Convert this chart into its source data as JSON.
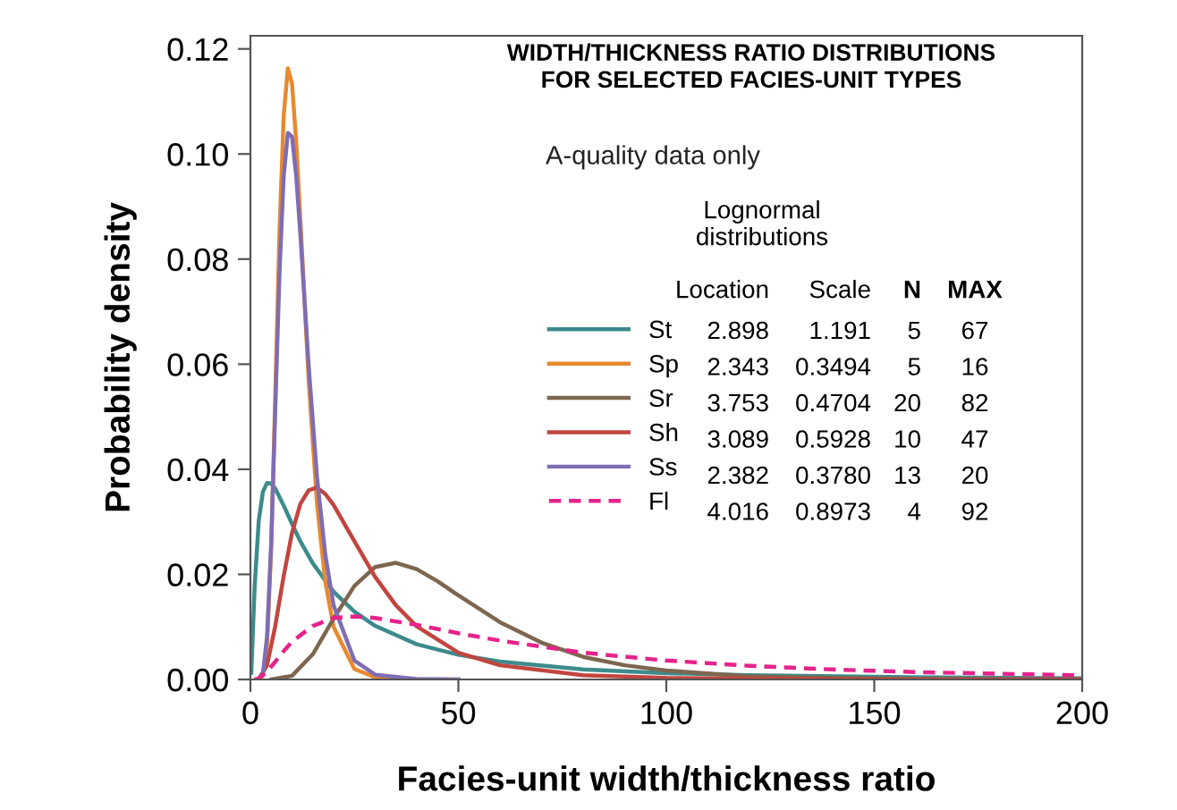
{
  "chart_data": {
    "type": "line",
    "title": "WIDTH/THICKNESS RATIO DISTRIBUTIONS\nFOR SELECTED FACIES-UNIT TYPES",
    "xlabel": "Facies-unit width/thickness ratio",
    "ylabel": "Probability density",
    "legend_title": "Lognormal\ndistributions",
    "annotations": [
      "A-quality data only",
      "Location",
      "Scale",
      "N",
      "MAX",
      "2.898",
      "1.191",
      "5",
      "67",
      "2.343",
      "0.3494",
      "5",
      "16",
      "3.753",
      "0.4704",
      "20",
      "82",
      "3.089",
      "0.5928",
      "10",
      "47",
      "2.382",
      "0.3780",
      "13",
      "20",
      "4.016",
      "0.8973",
      "4",
      "92"
    ],
    "series": [
      {
        "name": "St",
        "color": "#3d8b8c",
        "line_style": "solid",
        "x": [
          0.2,
          0.5,
          1,
          2,
          3,
          4,
          5,
          6,
          8,
          10,
          12,
          15,
          20,
          25,
          30,
          40,
          50,
          60,
          80,
          100,
          120,
          150,
          200
        ],
        "values": [
          0.0013,
          0.0071,
          0.0174,
          0.0302,
          0.0357,
          0.0374,
          0.0373,
          0.0363,
          0.0331,
          0.0296,
          0.0263,
          0.0221,
          0.0167,
          0.0129,
          0.0102,
          0.0067,
          0.0047,
          0.0034,
          0.0019,
          0.0012,
          0.0008,
          0.0005,
          0.0002
        ]
      },
      {
        "name": "Sp",
        "color": "#e8892f",
        "line_style": "solid",
        "x": [
          2,
          3,
          4,
          5,
          6,
          7,
          8,
          9,
          10,
          11,
          12,
          14,
          16,
          18,
          20,
          25,
          30,
          40,
          50
        ],
        "values": [
          0.0,
          0.0007,
          0.0067,
          0.0251,
          0.0549,
          0.0855,
          0.1073,
          0.1163,
          0.1134,
          0.1025,
          0.0876,
          0.057,
          0.0335,
          0.0186,
          0.01,
          0.002,
          0.0004,
          0.0,
          0.0
        ]
      },
      {
        "name": "Sr",
        "color": "#7d6650",
        "line_style": "solid",
        "x": [
          5,
          10,
          15,
          20,
          25,
          30,
          35,
          40,
          45,
          50,
          60,
          70,
          80,
          90,
          100,
          120,
          140,
          160,
          200
        ],
        "values": [
          0.0,
          0.0007,
          0.0048,
          0.0116,
          0.0178,
          0.0214,
          0.0222,
          0.021,
          0.0187,
          0.016,
          0.0109,
          0.007,
          0.0043,
          0.0027,
          0.0017,
          0.0006,
          0.0003,
          0.0001,
          0.0
        ]
      },
      {
        "name": "Sh",
        "color": "#c2453f",
        "line_style": "solid",
        "x": [
          2,
          4,
          6,
          8,
          10,
          12,
          14,
          16,
          18,
          20,
          25,
          30,
          35,
          40,
          50,
          60,
          80,
          100,
          150,
          200
        ],
        "values": [
          0.0001,
          0.0027,
          0.0103,
          0.0197,
          0.0279,
          0.0334,
          0.036,
          0.0365,
          0.0353,
          0.0332,
          0.0263,
          0.0195,
          0.0141,
          0.0101,
          0.0051,
          0.0027,
          0.0008,
          0.0003,
          0.0,
          0.0
        ]
      },
      {
        "name": "Ss",
        "color": "#7e6db3",
        "line_style": "solid",
        "x": [
          2,
          3,
          4,
          5,
          6,
          7,
          8,
          9,
          10,
          11,
          12,
          14,
          16,
          18,
          20,
          25,
          30,
          40,
          50
        ],
        "values": [
          0.0,
          0.0011,
          0.0082,
          0.0261,
          0.052,
          0.0775,
          0.0957,
          0.104,
          0.1033,
          0.0959,
          0.0848,
          0.0598,
          0.0386,
          0.0238,
          0.0141,
          0.0036,
          0.0009,
          0.0001,
          0.0
        ]
      },
      {
        "name": "Fl",
        "color": "#e5238b",
        "line_style": "dashed",
        "x": [
          1,
          2,
          4,
          6,
          8,
          10,
          15,
          20,
          25,
          30,
          40,
          50,
          60,
          80,
          100,
          120,
          140,
          160,
          180,
          200
        ],
        "values": [
          0.0,
          0.0002,
          0.0015,
          0.0034,
          0.0054,
          0.0072,
          0.0102,
          0.0117,
          0.012,
          0.0117,
          0.0104,
          0.0088,
          0.0074,
          0.0051,
          0.0036,
          0.0026,
          0.0019,
          0.0014,
          0.0011,
          0.0008
        ]
      }
    ],
    "xlim": [
      0,
      200
    ],
    "xticks": [
      0,
      50,
      100,
      150,
      200
    ],
    "ylim": [
      0,
      0.1225
    ],
    "yticks": [
      {
        "value": 0,
        "label": "0.00"
      },
      {
        "value": 0.02,
        "label": "0.02"
      },
      {
        "value": 0.04,
        "label": "0.04"
      },
      {
        "value": 0.06,
        "label": "0.06"
      },
      {
        "value": 0.08,
        "label": "0.08"
      },
      {
        "value": 0.1,
        "label": "0.10"
      },
      {
        "value": 0.12,
        "label": "0.12"
      }
    ],
    "grid": false,
    "legend": "center",
    "marker": "none"
  }
}
